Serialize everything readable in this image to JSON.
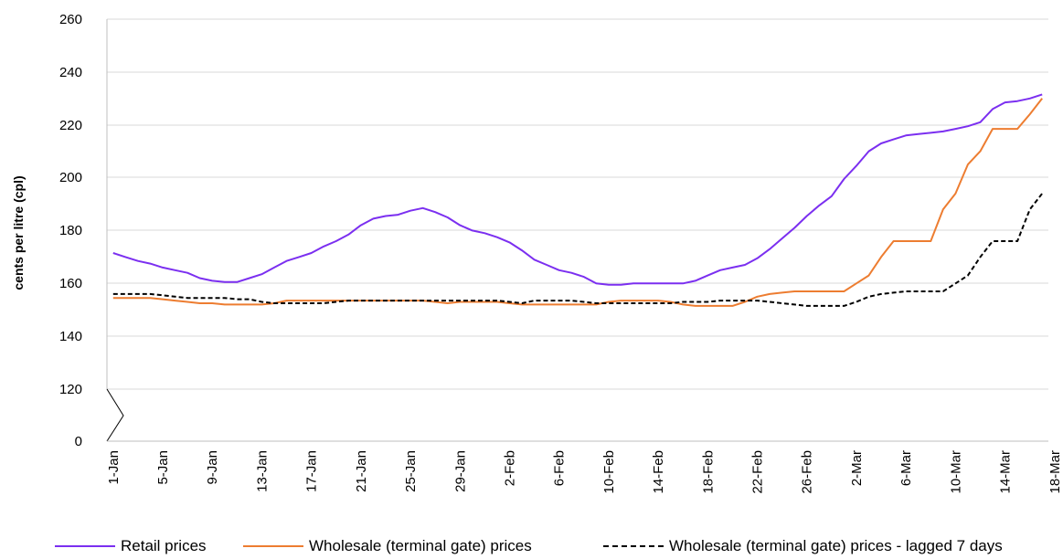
{
  "chart_data": {
    "type": "line",
    "ylabel": "cents per litre (cpl)",
    "xlabel": "",
    "y_ticks": [
      0,
      120,
      140,
      160,
      180,
      200,
      220,
      240,
      260
    ],
    "y_axis_break": "between 0 and 120",
    "ylim": [
      0,
      260
    ],
    "x_tick_labels": [
      "1-Jan",
      "5-Jan",
      "9-Jan",
      "13-Jan",
      "17-Jan",
      "21-Jan",
      "25-Jan",
      "29-Jan",
      "2-Feb",
      "6-Feb",
      "10-Feb",
      "14-Feb",
      "18-Feb",
      "22-Feb",
      "26-Feb",
      "2-Mar",
      "6-Mar",
      "10-Mar",
      "14-Mar",
      "18-Mar"
    ],
    "x_start": "1-Jan",
    "x_end": "18-Mar",
    "grid": "horizontal",
    "legend_position": "bottom",
    "series": [
      {
        "name": "Retail prices",
        "color": "#7B2FF0",
        "style": "solid",
        "values": [
          171.5,
          170,
          168.5,
          167.5,
          166,
          165,
          164,
          162,
          161,
          160.5,
          160.5,
          162,
          163.5,
          166,
          168.5,
          170,
          171.5,
          174,
          176,
          178.5,
          182,
          184.5,
          185.5,
          186,
          187.5,
          188.5,
          187,
          185,
          182,
          180,
          179,
          177.5,
          175.5,
          172.5,
          169,
          167,
          165,
          164,
          162.5,
          160,
          159.5,
          159.5,
          160,
          160,
          160,
          160,
          160,
          161,
          163,
          165,
          166,
          167,
          169.5,
          173,
          177,
          181,
          185.5,
          189.5,
          193,
          199.5,
          204.5,
          210,
          213,
          214.5,
          216,
          216.5,
          217,
          217.5,
          218.5,
          219.5,
          221,
          226,
          228.5,
          229,
          230,
          231.5
        ]
      },
      {
        "name": "Wholesale (terminal gate) prices",
        "color": "#ED7D31",
        "style": "solid",
        "values": [
          154.5,
          154.5,
          154.5,
          154.5,
          154,
          153.5,
          153,
          152.5,
          152.5,
          152,
          152,
          152,
          152,
          152.5,
          153.5,
          153.5,
          153.5,
          153.5,
          153.5,
          153.5,
          153.5,
          153.5,
          153.5,
          153.5,
          153.5,
          153.5,
          153,
          152.5,
          153,
          153,
          153,
          153,
          152.5,
          152,
          152,
          152,
          152,
          152,
          152,
          152,
          153,
          153.5,
          153.5,
          153.5,
          153.5,
          153,
          152,
          151.5,
          151.5,
          151.5,
          151.5,
          153,
          155,
          156,
          156.5,
          157,
          157,
          157,
          157,
          157,
          160,
          163,
          170,
          176,
          176,
          176,
          176,
          188,
          194,
          205,
          210,
          218.5,
          218.5,
          218.5,
          224,
          230
        ]
      },
      {
        "name": "Wholesale (terminal gate) prices - lagged 7 days",
        "color": "#000000",
        "style": "dashed",
        "values": [
          156,
          156,
          156,
          156,
          155.5,
          155,
          154.5,
          154.5,
          154.5,
          154.5,
          154,
          154,
          153,
          152.5,
          152.5,
          152.5,
          152.5,
          152.5,
          153,
          153.5,
          153.5,
          153.5,
          153.5,
          153.5,
          153.5,
          153.5,
          153.5,
          153.5,
          153.5,
          153.5,
          153.5,
          153.5,
          153,
          152.5,
          153.5,
          153.5,
          153.5,
          153.5,
          153,
          152.5,
          152.5,
          152.5,
          152.5,
          152.5,
          152.5,
          152.5,
          153,
          153,
          153,
          153.5,
          153.5,
          153.5,
          153.5,
          153,
          152.5,
          152,
          151.5,
          151.5,
          151.5,
          151.5,
          153,
          155,
          156,
          156.5,
          157,
          157,
          157,
          157,
          160,
          163,
          170,
          176,
          176,
          176,
          188,
          194
        ]
      }
    ]
  }
}
